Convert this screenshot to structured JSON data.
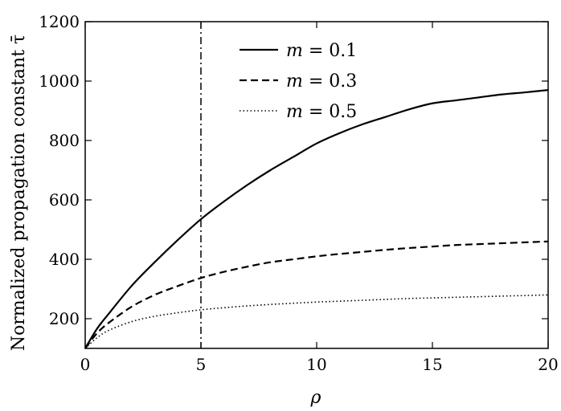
{
  "chart_data": {
    "type": "line",
    "xlabel": "ρ",
    "ylabel": "Normalized propagation constant τ̄",
    "xlim": [
      0,
      20
    ],
    "ylim": [
      100,
      1200
    ],
    "xticks": [
      0,
      5,
      10,
      15,
      20
    ],
    "yticks": [
      200,
      400,
      600,
      800,
      1000,
      1200
    ],
    "grid": false,
    "legend_position": "top-center",
    "vline": {
      "x": 5,
      "style": "dash-dot"
    },
    "series": [
      {
        "name": "m = 0.1",
        "var": "m",
        "value": "= 0.1",
        "style": "solid",
        "x": [
          0,
          0.5,
          1,
          2,
          3,
          4,
          5,
          6,
          7,
          8,
          9,
          10,
          11,
          12,
          13,
          14,
          15,
          16,
          17,
          18,
          19,
          20
        ],
        "y": [
          100,
          165,
          215,
          310,
          390,
          465,
          535,
          595,
          650,
          700,
          745,
          790,
          825,
          855,
          880,
          905,
          925,
          935,
          945,
          955,
          962,
          970
        ]
      },
      {
        "name": "m = 0.3",
        "var": "m",
        "value": "= 0.3",
        "style": "dashed",
        "x": [
          0,
          0.5,
          1,
          2,
          3,
          4,
          5,
          6,
          7,
          8,
          9,
          10,
          11,
          12,
          13,
          14,
          15,
          16,
          17,
          18,
          19,
          20
        ],
        "y": [
          100,
          150,
          185,
          240,
          280,
          310,
          337,
          358,
          375,
          390,
          400,
          410,
          418,
          425,
          432,
          438,
          443,
          448,
          451,
          454,
          457,
          460
        ]
      },
      {
        "name": "m = 0.5",
        "var": "m",
        "value": "= 0.5",
        "style": "dotted",
        "x": [
          0,
          0.5,
          1,
          2,
          3,
          4,
          5,
          6,
          7,
          8,
          9,
          10,
          11,
          12,
          13,
          14,
          15,
          16,
          17,
          18,
          19,
          20
        ],
        "y": [
          100,
          135,
          160,
          190,
          208,
          220,
          230,
          237,
          243,
          248,
          252,
          256,
          259,
          262,
          265,
          268,
          270,
          272,
          274,
          276,
          278,
          280
        ]
      }
    ]
  }
}
